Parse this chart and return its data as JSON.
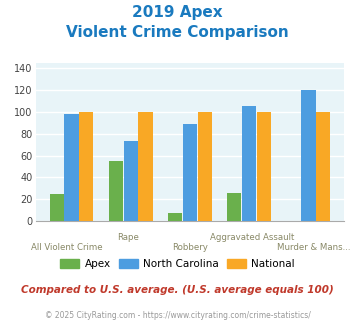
{
  "title_line1": "2019 Apex",
  "title_line2": "Violent Crime Comparison",
  "categories": [
    "All Violent Crime",
    "Rape",
    "Robbery",
    "Aggravated Assault",
    "Murder & Mans..."
  ],
  "apex_values": [
    25,
    55,
    7,
    26,
    0
  ],
  "nc_values": [
    98,
    73,
    89,
    105,
    120
  ],
  "national_values": [
    100,
    100,
    100,
    100,
    100
  ],
  "apex_color": "#6ab04c",
  "nc_color": "#4d9de0",
  "national_color": "#f9a825",
  "ylim": [
    0,
    145
  ],
  "yticks": [
    0,
    20,
    40,
    60,
    80,
    100,
    120,
    140
  ],
  "legend_labels": [
    "Apex",
    "North Carolina",
    "National"
  ],
  "footer_text": "Compared to U.S. average. (U.S. average equals 100)",
  "copyright_text": "© 2025 CityRating.com - https://www.cityrating.com/crime-statistics/",
  "title_color": "#1a7abf",
  "footer_color": "#c0392b",
  "copyright_color": "#999999",
  "bg_color": "#e8f4f8",
  "grid_color": "#ffffff"
}
